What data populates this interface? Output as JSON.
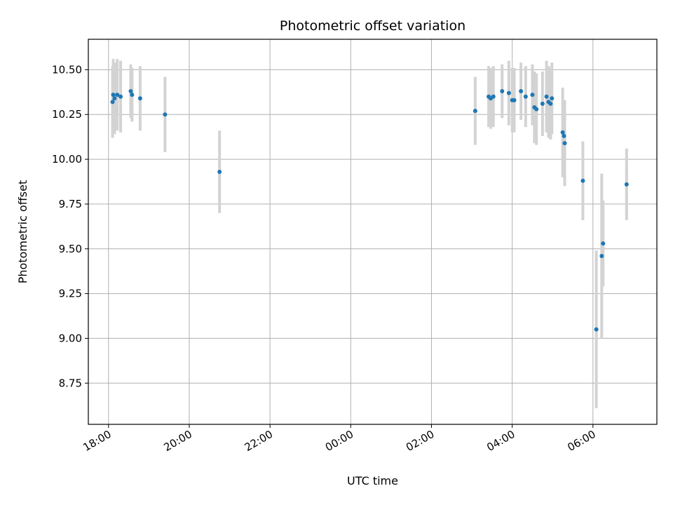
{
  "chart_data": {
    "type": "scatter",
    "title": "Photometric offset variation",
    "xlabel": "UTC time",
    "ylabel": "Photometric offset",
    "x_axis": {
      "kind": "time",
      "range": [
        "17:30",
        "31:35"
      ],
      "ticks": [
        {
          "value": "18:00",
          "label": "18:00"
        },
        {
          "value": "20:00",
          "label": "20:00"
        },
        {
          "value": "22:00",
          "label": "22:00"
        },
        {
          "value": "24:00",
          "label": "00:00"
        },
        {
          "value": "26:00",
          "label": "02:00"
        },
        {
          "value": "28:00",
          "label": "04:00"
        },
        {
          "value": "30:00",
          "label": "06:00"
        }
      ]
    },
    "y_axis": {
      "range": [
        8.52,
        10.67
      ],
      "ticks": [
        {
          "value": 8.75,
          "label": "8.75"
        },
        {
          "value": 9.0,
          "label": "9.00"
        },
        {
          "value": 9.25,
          "label": "9.25"
        },
        {
          "value": 9.5,
          "label": "9.50"
        },
        {
          "value": 9.75,
          "label": "9.75"
        },
        {
          "value": 10.0,
          "label": "10.00"
        },
        {
          "value": 10.25,
          "label": "10.25"
        },
        {
          "value": 10.5,
          "label": "10.50"
        }
      ]
    },
    "grid": true,
    "point_color": "#1f77b4",
    "errorbar_color": "#d3d3d3",
    "points": [
      {
        "x": "18:06",
        "y": 10.32,
        "err": 0.2
      },
      {
        "x": "18:07",
        "y": 10.36,
        "err": 0.2
      },
      {
        "x": "18:09",
        "y": 10.34,
        "err": 0.2
      },
      {
        "x": "18:13",
        "y": 10.36,
        "err": 0.2
      },
      {
        "x": "18:18",
        "y": 10.35,
        "err": 0.2
      },
      {
        "x": "18:33",
        "y": 10.38,
        "err": 0.15
      },
      {
        "x": "18:35",
        "y": 10.36,
        "err": 0.15
      },
      {
        "x": "18:47",
        "y": 10.34,
        "err": 0.18
      },
      {
        "x": "19:24",
        "y": 10.25,
        "err": 0.21
      },
      {
        "x": "20:45",
        "y": 9.93,
        "err": 0.23
      },
      {
        "x": "27:05",
        "y": 10.27,
        "err": 0.19
      },
      {
        "x": "27:25",
        "y": 10.35,
        "err": 0.17
      },
      {
        "x": "27:28",
        "y": 10.34,
        "err": 0.17
      },
      {
        "x": "27:32",
        "y": 10.35,
        "err": 0.17
      },
      {
        "x": "27:45",
        "y": 10.38,
        "err": 0.15
      },
      {
        "x": "27:55",
        "y": 10.37,
        "err": 0.18
      },
      {
        "x": "28:00",
        "y": 10.33,
        "err": 0.18
      },
      {
        "x": "28:03",
        "y": 10.33,
        "err": 0.18
      },
      {
        "x": "28:13",
        "y": 10.38,
        "err": 0.16
      },
      {
        "x": "28:20",
        "y": 10.35,
        "err": 0.17
      },
      {
        "x": "28:30",
        "y": 10.36,
        "err": 0.17
      },
      {
        "x": "28:33",
        "y": 10.29,
        "err": 0.2
      },
      {
        "x": "28:36",
        "y": 10.28,
        "err": 0.2
      },
      {
        "x": "28:45",
        "y": 10.31,
        "err": 0.18
      },
      {
        "x": "28:51",
        "y": 10.35,
        "err": 0.2
      },
      {
        "x": "28:54",
        "y": 10.32,
        "err": 0.2
      },
      {
        "x": "28:57",
        "y": 10.31,
        "err": 0.2
      },
      {
        "x": "28:59",
        "y": 10.34,
        "err": 0.2
      },
      {
        "x": "29:15",
        "y": 10.15,
        "err": 0.25
      },
      {
        "x": "29:17",
        "y": 10.13,
        "err": 0.2
      },
      {
        "x": "29:18",
        "y": 10.09,
        "err": 0.24
      },
      {
        "x": "29:45",
        "y": 9.88,
        "err": 0.22
      },
      {
        "x": "30:05",
        "y": 9.05,
        "err": 0.44
      },
      {
        "x": "30:13",
        "y": 9.46,
        "err": 0.46
      },
      {
        "x": "30:15",
        "y": 9.53,
        "err": 0.24
      },
      {
        "x": "30:50",
        "y": 9.86,
        "err": 0.2
      }
    ]
  }
}
